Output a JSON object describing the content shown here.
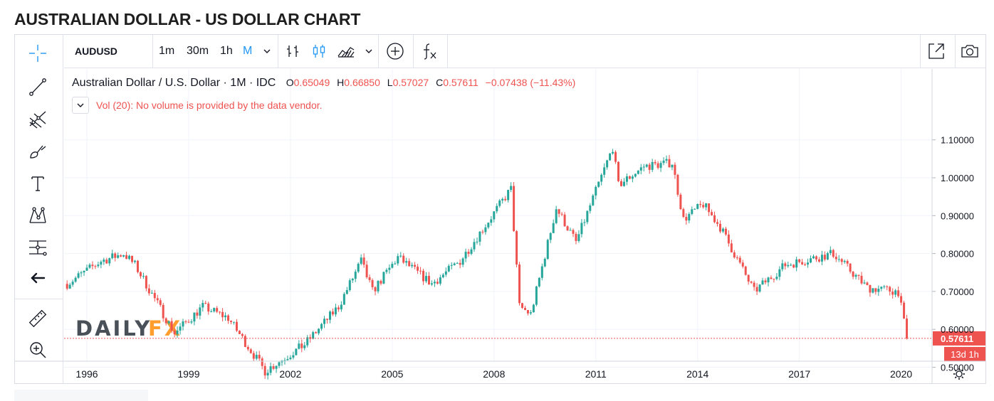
{
  "page_title": "AUSTRALIAN DOLLAR - US DOLLAR CHART",
  "toolbar": {
    "symbol": "AUDUSD",
    "intervals": [
      "1m",
      "30m",
      "1h",
      "M"
    ],
    "active_interval": "M"
  },
  "legend": {
    "name": "Australian Dollar / U.S. Dollar · 1M · IDC",
    "o_label": "O",
    "o": "0.65049",
    "h_label": "H",
    "h": "0.66850",
    "l_label": "L",
    "l": "0.57027",
    "c_label": "C",
    "c": "0.57611",
    "change": "−0.07438 (−11.43%)",
    "volume_note": "Vol (20): No volume is provided by the data vendor."
  },
  "watermark": {
    "part1": "DAILY",
    "part2": "FX"
  },
  "colors": {
    "up": "#26a69a",
    "down": "#ef5350",
    "grid": "#f0f3fa",
    "axis_text": "#131722",
    "watermark_dark": "#4a5058",
    "watermark_accent": "#ff9d2d"
  },
  "icons": {
    "crosshair": "crosshair-icon",
    "trendline": "trend-line-icon",
    "fib": "pitchfork-icon",
    "brush": "brush-icon",
    "text": "text-icon",
    "pattern": "pattern-icon",
    "position": "long-position-icon",
    "back": "arrow-left-icon",
    "ruler": "ruler-icon",
    "zoom": "zoom-in-icon",
    "fullscreen": "fullscreen-icon",
    "camera": "camera-icon",
    "settings": "gear-icon"
  },
  "chart_data": {
    "type": "candlestick",
    "title": "",
    "xlabel": "",
    "ylabel": "",
    "x_ticks": [
      "1996",
      "1999",
      "2002",
      "2005",
      "2008",
      "2011",
      "2014",
      "2017",
      "2020"
    ],
    "y_ticks": [
      "0.50000",
      "0.60000",
      "0.70000",
      "0.80000",
      "0.90000",
      "1.00000",
      "1.10000"
    ],
    "ylim": [
      0.45,
      1.14
    ],
    "xlim": [
      "1995-06",
      "2020-12"
    ],
    "price_label": "0.57611",
    "countdown_label": "13d 1h",
    "last_price": 0.57611,
    "grid": true,
    "series": [
      {
        "name": "AUDUSD",
        "interval": "1M",
        "anchor_path": [
          [
            "1995-06",
            0.72
          ],
          [
            "1996-06",
            0.78
          ],
          [
            "1997-02",
            0.8
          ],
          [
            "1997-06",
            0.77
          ],
          [
            "1998-08",
            0.59
          ],
          [
            "1999-06",
            0.66
          ],
          [
            "2000-03",
            0.63
          ],
          [
            "2001-04",
            0.49
          ],
          [
            "2002-06",
            0.56
          ],
          [
            "2003-06",
            0.66
          ],
          [
            "2004-02",
            0.78
          ],
          [
            "2004-06",
            0.7
          ],
          [
            "2005-03",
            0.79
          ],
          [
            "2006-03",
            0.72
          ],
          [
            "2007-01",
            0.78
          ],
          [
            "2008-06",
            0.96
          ],
          [
            "2008-07",
            0.97
          ],
          [
            "2008-10",
            0.66
          ],
          [
            "2009-02",
            0.64
          ],
          [
            "2009-11",
            0.92
          ],
          [
            "2010-06",
            0.83
          ],
          [
            "2011-07",
            1.08
          ],
          [
            "2011-09",
            0.98
          ],
          [
            "2012-06",
            1.03
          ],
          [
            "2013-04",
            1.04
          ],
          [
            "2013-08",
            0.89
          ],
          [
            "2014-03",
            0.93
          ],
          [
            "2014-09",
            0.87
          ],
          [
            "2015-09",
            0.7
          ],
          [
            "2016-08",
            0.77
          ],
          [
            "2018-01",
            0.8
          ],
          [
            "2019-01",
            0.71
          ],
          [
            "2019-12",
            0.7
          ],
          [
            "2020-03",
            0.576
          ]
        ]
      }
    ]
  }
}
